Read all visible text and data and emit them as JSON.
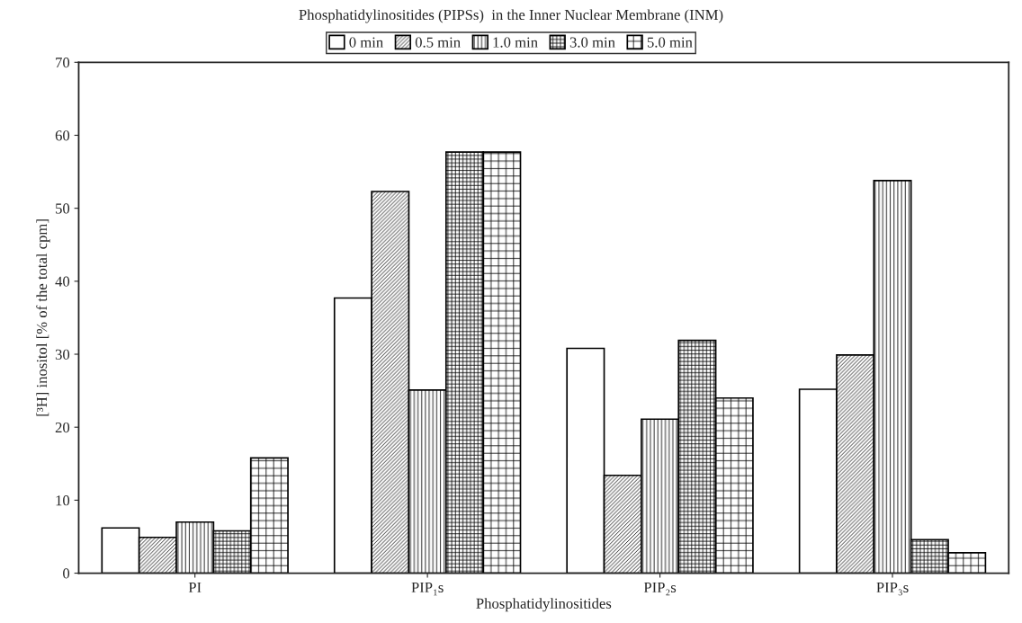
{
  "chart_data": {
    "type": "bar",
    "title": "Phosphatidylinositides (PIPSs)  in the Inner Nuclear Membrane (INM)",
    "xlabel": "Phosphatidylinositides",
    "ylabel": "[³H] inositol [% of the total cpm]",
    "categories": [
      "PI",
      "PIP₁s",
      "PIP₂s",
      "PIP₃s"
    ],
    "series": [
      {
        "name": "0 min",
        "color": "#ffffff",
        "values": [
          6.2,
          37.7,
          30.8,
          25.2
        ]
      },
      {
        "name": "0.5 min",
        "color": "#000000",
        "values": [
          4.9,
          52.3,
          13.4,
          29.9
        ]
      },
      {
        "name": "1.0 min",
        "color": "#000000",
        "values": [
          7.0,
          25.1,
          21.1,
          53.8
        ]
      },
      {
        "name": "3.0 min",
        "color": "#000000",
        "values": [
          5.8,
          57.7,
          31.9,
          4.6
        ]
      },
      {
        "name": "5.0 min",
        "color": "#000000",
        "values": [
          15.8,
          57.7,
          24.0,
          2.8
        ]
      }
    ],
    "ylim": [
      0,
      70
    ],
    "yticks": [
      0,
      10,
      20,
      30,
      40,
      50,
      60,
      70
    ],
    "grid": false,
    "legend": "top"
  }
}
